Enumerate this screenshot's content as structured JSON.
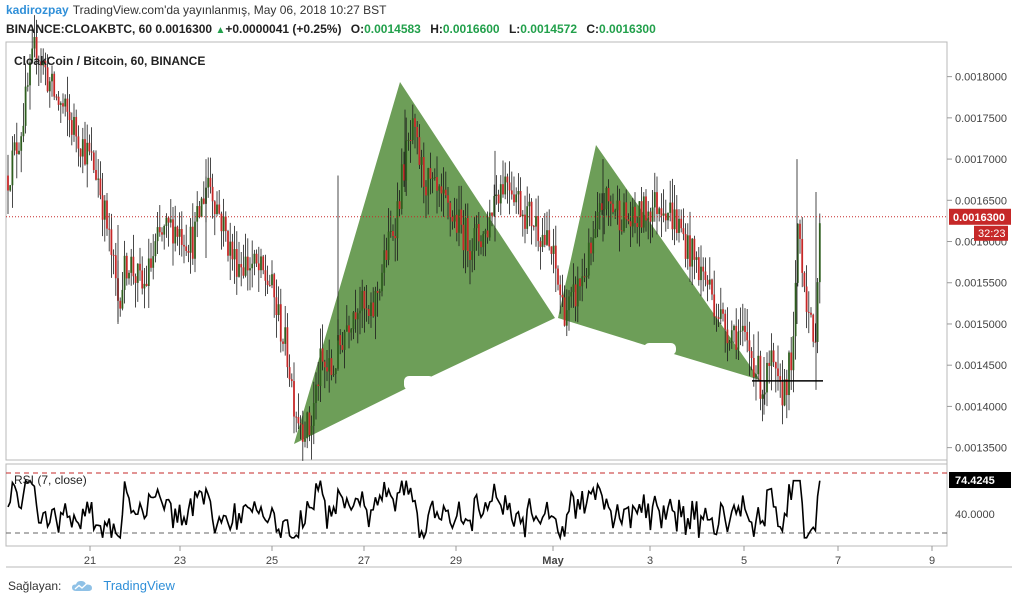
{
  "header": {
    "user": "kadirozpay",
    "published": "TradingView.com'da yayınlanmış, May 06, 2018 10:27 BST",
    "symbol": "BINANCE:CLOAKBTC, 60",
    "last": "0.0016300",
    "change": "+0.0000041 (+0.25%)",
    "o_label": "O:",
    "o_value": "0.0014583",
    "h_label": "H:",
    "h_value": "0.0016600",
    "l_label": "L:",
    "l_value": "0.0014572",
    "c_label": "C:",
    "c_value": "0.0016300"
  },
  "footer": {
    "label": "Sağlayan:",
    "brand": "TradingView"
  },
  "colors": {
    "up": "#2e5e1e",
    "down": "#c62828",
    "pattern": "#5d9446",
    "price_line": "#c62828",
    "rsi": "#000000",
    "axis_text": "#444444"
  },
  "chart_data": {
    "type": "candlestick",
    "title": "CloakCoin / Bitcoin, 60, BINANCE",
    "price_axis": {
      "ticks": [
        "0.0013500",
        "0.0014000",
        "0.0014500",
        "0.0015000",
        "0.0015500",
        "0.0016000",
        "0.0016500",
        "0.0017000",
        "0.0017500",
        "0.0018000"
      ],
      "range": [
        0.001335,
        0.001842
      ]
    },
    "x_ticks": [
      "21",
      "23",
      "25",
      "27",
      "29",
      "May",
      "3",
      "5",
      "7",
      "9"
    ],
    "last_price_label": "0.0016300",
    "countdown_label": "32:23",
    "price_path": [
      [
        0,
        0.00168
      ],
      [
        12,
        0.00173
      ],
      [
        28,
        0.00184
      ],
      [
        45,
        0.00178
      ],
      [
        70,
        0.00173
      ],
      [
        90,
        0.00168
      ],
      [
        100,
        0.00161
      ],
      [
        110,
        0.00153
      ],
      [
        120,
        0.00158
      ],
      [
        135,
        0.00154
      ],
      [
        150,
        0.0016
      ],
      [
        165,
        0.00162
      ],
      [
        185,
        0.0016
      ],
      [
        200,
        0.00168
      ],
      [
        210,
        0.00164
      ],
      [
        225,
        0.00158
      ],
      [
        245,
        0.00157
      ],
      [
        262,
        0.00155
      ],
      [
        272,
        0.0015
      ],
      [
        280,
        0.00146
      ],
      [
        287,
        0.0014
      ],
      [
        294,
        0.00138
      ],
      [
        302,
        0.00137
      ],
      [
        312,
        0.00145
      ],
      [
        324,
        0.00144
      ],
      [
        338,
        0.0015
      ],
      [
        350,
        0.00153
      ],
      [
        362,
        0.0015
      ],
      [
        375,
        0.00157
      ],
      [
        388,
        0.00163
      ],
      [
        397,
        0.0017
      ],
      [
        405,
        0.00173
      ],
      [
        415,
        0.00168
      ],
      [
        430,
        0.00165
      ],
      [
        445,
        0.00163
      ],
      [
        462,
        0.0016
      ],
      [
        478,
        0.00161
      ],
      [
        487,
        0.00166
      ],
      [
        500,
        0.00168
      ],
      [
        515,
        0.00164
      ],
      [
        530,
        0.00162
      ],
      [
        545,
        0.00158
      ],
      [
        555,
        0.00152
      ],
      [
        563,
        0.00152
      ],
      [
        575,
        0.00156
      ],
      [
        585,
        0.00159
      ],
      [
        595,
        0.00165
      ],
      [
        608,
        0.00164
      ],
      [
        625,
        0.00162
      ],
      [
        640,
        0.00164
      ],
      [
        655,
        0.00165
      ],
      [
        670,
        0.00162
      ],
      [
        685,
        0.00158
      ],
      [
        700,
        0.00155
      ],
      [
        715,
        0.0015
      ],
      [
        730,
        0.00149
      ],
      [
        745,
        0.00146
      ],
      [
        755,
        0.00142
      ],
      [
        763,
        0.00145
      ],
      [
        772,
        0.00141
      ],
      [
        780,
        0.00144
      ],
      [
        786,
        0.00147
      ],
      [
        790,
        0.00163
      ],
      [
        794,
        0.00158
      ],
      [
        800,
        0.00152
      ],
      [
        806,
        0.00146
      ],
      [
        812,
        0.00163
      ]
    ],
    "rsi": {
      "label": "RSI (7, close)",
      "value_label": "74.4245",
      "mid_label": "40.0000",
      "upper_level": 70,
      "lower_level": 30
    }
  }
}
